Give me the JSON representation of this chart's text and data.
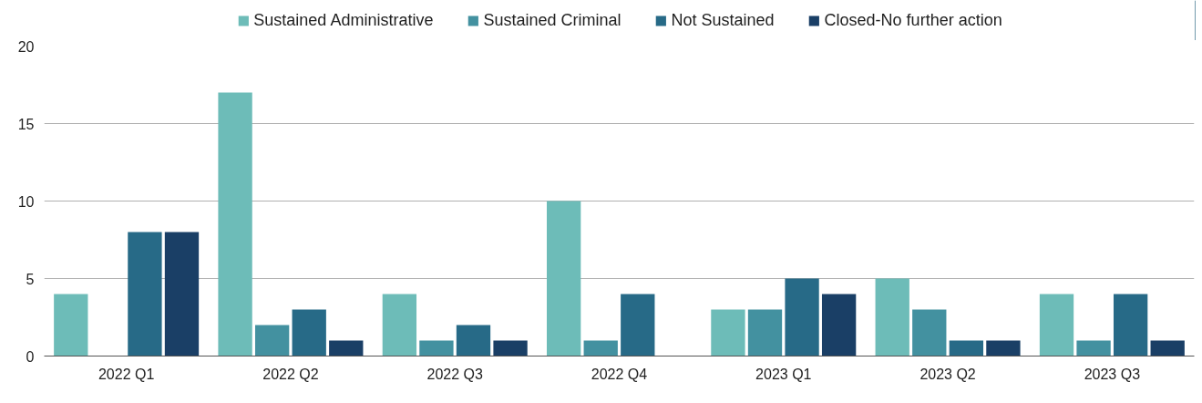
{
  "chart_data": {
    "type": "bar",
    "categories": [
      "2022 Q1",
      "2022 Q2",
      "2022 Q3",
      "2022 Q4",
      "2023 Q1",
      "2023 Q2",
      "2023 Q3"
    ],
    "series": [
      {
        "name": "Sustained Administrative",
        "color": "#6dbcb8",
        "values": [
          4,
          17,
          4,
          10,
          3,
          5,
          4
        ]
      },
      {
        "name": "Sustained Criminal",
        "color": "#4391a0",
        "values": [
          0,
          2,
          1,
          1,
          3,
          3,
          1
        ]
      },
      {
        "name": "Not Sustained",
        "color": "#276a87",
        "values": [
          8,
          3,
          2,
          4,
          5,
          1,
          4
        ]
      },
      {
        "name": "Closed-No further action",
        "color": "#1a3f66",
        "values": [
          8,
          1,
          1,
          0,
          4,
          1,
          1
        ]
      }
    ],
    "ylim": [
      0,
      20
    ],
    "yticks": [
      0,
      5,
      10,
      15,
      20
    ],
    "grid": "y",
    "legend": "top"
  }
}
